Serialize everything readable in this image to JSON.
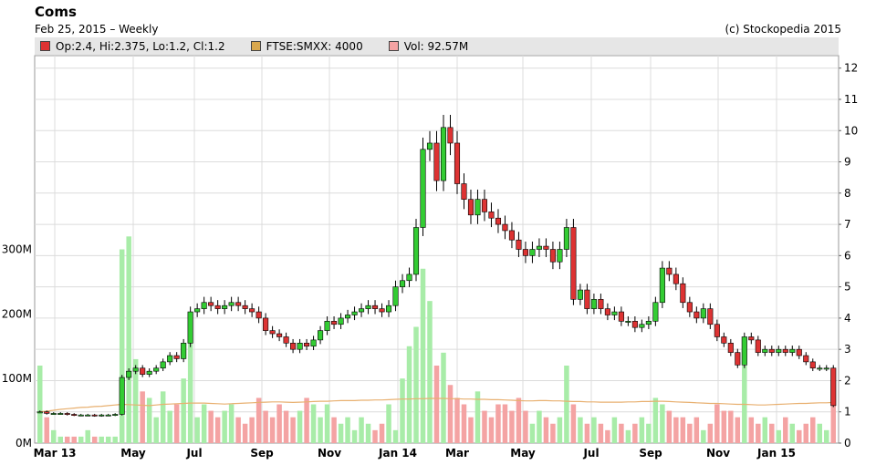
{
  "header": {
    "title": "Coms",
    "subtitle": "Feb 25, 2015 – Weekly",
    "credit": "(c) Stockopedia 2015"
  },
  "legend": [
    {
      "label": "Op:2.4, Hi:2.375, Lo:1.2, Cl:1.2",
      "color": "#dd3333"
    },
    {
      "label": "FTSE:SMXX: 4000",
      "color": "#d9a84e"
    },
    {
      "label": "Vol: 92.57M",
      "color": "#f4a3a3"
    }
  ],
  "colors": {
    "up": "#33cc33",
    "down": "#dd3333",
    "vol_up": "#a8eca8",
    "vol_down": "#f4a3a3",
    "index": "#e8b070",
    "grid": "#dcdcdc"
  },
  "chart_data": {
    "type": "candlestick",
    "interval": "weekly",
    "x_tick_labels": [
      "Mar 13",
      "May",
      "Jul",
      "Sep",
      "Nov",
      "Jan 14",
      "Mar",
      "May",
      "Jul",
      "Sep",
      "Nov",
      "Jan 15"
    ],
    "y_right_ticks": [
      "0",
      "1",
      "2",
      "3",
      "4",
      "5",
      "6",
      "7",
      "8",
      "9",
      "10",
      "11",
      "12"
    ],
    "y_left_ticks": [
      "0M",
      "100M",
      "200M",
      "300M"
    ],
    "ylim_price": [
      0,
      12.4
    ],
    "ylim_volume_M": [
      0,
      600
    ],
    "grid": true,
    "series": [
      {
        "name": "Coms",
        "kind": "ohlc",
        "close": [
          1.0,
          0.95,
          0.95,
          0.95,
          0.92,
          0.9,
          0.9,
          0.9,
          0.88,
          0.9,
          0.9,
          0.92,
          2.1,
          2.3,
          2.4,
          2.2,
          2.3,
          2.4,
          2.6,
          2.8,
          2.7,
          3.2,
          4.2,
          4.3,
          4.5,
          4.4,
          4.3,
          4.4,
          4.5,
          4.4,
          4.3,
          4.2,
          4.0,
          3.6,
          3.5,
          3.4,
          3.2,
          3.0,
          3.2,
          3.1,
          3.3,
          3.6,
          3.9,
          3.8,
          4.0,
          4.1,
          4.2,
          4.3,
          4.4,
          4.3,
          4.2,
          4.4,
          5.0,
          5.2,
          5.4,
          6.9,
          9.4,
          9.6,
          8.4,
          10.1,
          9.6,
          8.3,
          7.8,
          7.3,
          7.8,
          7.4,
          7.2,
          7.0,
          6.8,
          6.5,
          6.2,
          6.0,
          6.2,
          6.3,
          6.2,
          5.8,
          6.2,
          6.9,
          4.6,
          4.9,
          4.3,
          4.6,
          4.3,
          4.1,
          4.2,
          3.9,
          3.9,
          3.7,
          3.8,
          3.9,
          4.5,
          5.6,
          5.4,
          5.1,
          4.5,
          4.2,
          4.0,
          4.3,
          3.8,
          3.4,
          3.2,
          2.9,
          2.5,
          3.4,
          3.3,
          2.9,
          3.0,
          2.9,
          3.0,
          2.9,
          3.0,
          2.8,
          2.6,
          2.4,
          2.4,
          2.4,
          1.2
        ]
      },
      {
        "name": "FTSE:SMXX",
        "kind": "line",
        "values": [
          1.0,
          1.02,
          1.05,
          1.08,
          1.1,
          1.12,
          1.14,
          1.15,
          1.17,
          1.18,
          1.2,
          1.22,
          1.24,
          1.23,
          1.22,
          1.21,
          1.2,
          1.22,
          1.24,
          1.25,
          1.26,
          1.27,
          1.28,
          1.28,
          1.28,
          1.27,
          1.26,
          1.25,
          1.26,
          1.27,
          1.28,
          1.29,
          1.3,
          1.31,
          1.32,
          1.32,
          1.31,
          1.3,
          1.31,
          1.32,
          1.33,
          1.34,
          1.34,
          1.35,
          1.36,
          1.36,
          1.36,
          1.37,
          1.37,
          1.38,
          1.38,
          1.39,
          1.4,
          1.41,
          1.41,
          1.42,
          1.42,
          1.43,
          1.43,
          1.43,
          1.42,
          1.42,
          1.41,
          1.41,
          1.4,
          1.4,
          1.39,
          1.39,
          1.38,
          1.37,
          1.36,
          1.35,
          1.35,
          1.36,
          1.36,
          1.35,
          1.35,
          1.34,
          1.33,
          1.33,
          1.32,
          1.32,
          1.31,
          1.31,
          1.31,
          1.31,
          1.32,
          1.32,
          1.33,
          1.33,
          1.34,
          1.34,
          1.33,
          1.32,
          1.31,
          1.3,
          1.29,
          1.28,
          1.27,
          1.27,
          1.26,
          1.25,
          1.24,
          1.24,
          1.23,
          1.22,
          1.22,
          1.23,
          1.24,
          1.25,
          1.26,
          1.27,
          1.27,
          1.28,
          1.29,
          1.29,
          1.3
        ]
      },
      {
        "name": "Volume",
        "kind": "bars",
        "unit": "M",
        "values": [
          120,
          40,
          20,
          10,
          10,
          10,
          10,
          20,
          10,
          10,
          10,
          10,
          300,
          320,
          130,
          80,
          70,
          40,
          80,
          50,
          60,
          100,
          200,
          40,
          60,
          50,
          40,
          50,
          60,
          40,
          30,
          40,
          70,
          50,
          40,
          60,
          50,
          40,
          50,
          70,
          60,
          40,
          60,
          40,
          30,
          40,
          20,
          40,
          30,
          20,
          30,
          60,
          20,
          100,
          150,
          180,
          270,
          220,
          120,
          140,
          90,
          70,
          60,
          40,
          80,
          50,
          40,
          60,
          60,
          50,
          70,
          50,
          30,
          50,
          40,
          30,
          40,
          120,
          60,
          40,
          30,
          40,
          30,
          20,
          40,
          30,
          20,
          30,
          40,
          30,
          70,
          60,
          50,
          40,
          40,
          30,
          40,
          20,
          30,
          60,
          50,
          50,
          40,
          120,
          40,
          30,
          40,
          30,
          20,
          40,
          30,
          20,
          30,
          40,
          30,
          20,
          90
        ]
      }
    ]
  }
}
